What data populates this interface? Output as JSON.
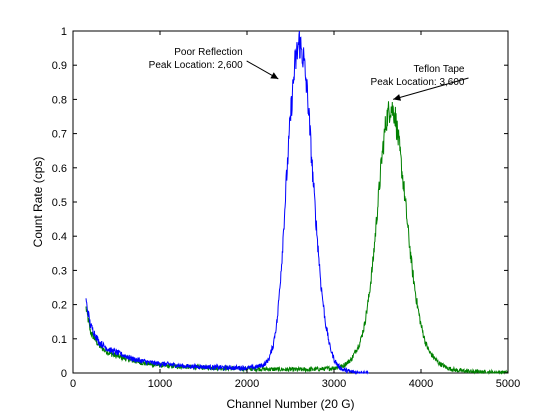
{
  "chart_data": {
    "type": "line",
    "title": "",
    "xlabel": "Channel Number (20 G)",
    "ylabel": "Count Rate (cps)",
    "xlim": [
      0,
      5000
    ],
    "ylim": [
      0,
      1
    ],
    "xticks": [
      0,
      1000,
      2000,
      3000,
      4000,
      5000
    ],
    "xtick_labels": [
      "0",
      "1000",
      "2000",
      "3000",
      "4000",
      "5000"
    ],
    "yticks": [
      0,
      0.1,
      0.2,
      0.3,
      0.4,
      0.5,
      0.6,
      0.7,
      0.8,
      0.9,
      1
    ],
    "ytick_labels": [
      "0",
      "0.1",
      "0.2",
      "0.3",
      "0.4",
      "0.5",
      "0.6",
      "0.7",
      "0.8",
      "0.9",
      "1"
    ],
    "grid": false,
    "legend": "none",
    "series": [
      {
        "color": "#0000ff",
        "x": [
          150,
          200,
          300,
          400,
          500,
          700,
          900,
          1100,
          1300,
          1500,
          1700,
          1900,
          2000,
          2100,
          2200,
          2250,
          2300,
          2350,
          2400,
          2450,
          2500,
          2550,
          2600,
          2650,
          2700,
          2750,
          2800,
          2850,
          2900,
          2950,
          3000,
          3050,
          3100,
          3200,
          3400
        ],
        "y": [
          0.21,
          0.14,
          0.09,
          0.07,
          0.06,
          0.04,
          0.03,
          0.025,
          0.02,
          0.018,
          0.016,
          0.015,
          0.015,
          0.017,
          0.025,
          0.04,
          0.08,
          0.16,
          0.33,
          0.55,
          0.75,
          0.9,
          0.97,
          0.92,
          0.8,
          0.6,
          0.42,
          0.26,
          0.15,
          0.08,
          0.04,
          0.02,
          0.01,
          0.003,
          0
        ]
      },
      {
        "color": "#008000",
        "x": [
          150,
          200,
          300,
          400,
          500,
          700,
          900,
          1100,
          1300,
          1500,
          1700,
          1900,
          2100,
          2300,
          2500,
          2700,
          2900,
          3000,
          3100,
          3200,
          3300,
          3350,
          3400,
          3450,
          3500,
          3550,
          3600,
          3650,
          3700,
          3750,
          3800,
          3850,
          3900,
          3950,
          4000,
          4050,
          4100,
          4200,
          4300,
          4400,
          4600,
          4800,
          5000
        ],
        "y": [
          0.19,
          0.12,
          0.08,
          0.06,
          0.05,
          0.035,
          0.025,
          0.02,
          0.018,
          0.016,
          0.014,
          0.013,
          0.012,
          0.011,
          0.01,
          0.01,
          0.012,
          0.015,
          0.02,
          0.04,
          0.09,
          0.14,
          0.22,
          0.33,
          0.48,
          0.63,
          0.74,
          0.78,
          0.76,
          0.66,
          0.55,
          0.42,
          0.3,
          0.21,
          0.14,
          0.09,
          0.06,
          0.03,
          0.015,
          0.008,
          0.004,
          0.002,
          0.001
        ]
      }
    ],
    "annotations": [
      {
        "lines": [
          "Poor Reflection",
          "Peak Location: 2,600"
        ],
        "arrow_to": [
          2360,
          0.86
        ],
        "text_anchor": [
          1950,
          0.93
        ],
        "align": "end"
      },
      {
        "lines": [
          "Teflon Tape",
          "Peak Location: 3,600"
        ],
        "arrow_to": [
          3680,
          0.8
        ],
        "text_anchor": [
          4500,
          0.88
        ],
        "align": "end"
      }
    ]
  }
}
